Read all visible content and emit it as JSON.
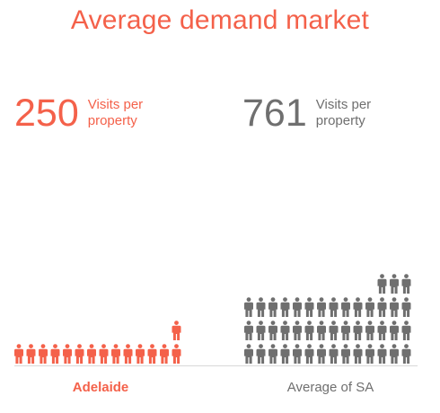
{
  "title": "Average demand market",
  "colors": {
    "accent": "#f4614a",
    "gray": "#6f6f6f",
    "divider": "#d8d8d8"
  },
  "chart_data": {
    "type": "bar",
    "encoding": "pictogram",
    "title": "Average demand market",
    "categories": [
      "Adelaide",
      "Average of SA"
    ],
    "values": [
      250,
      761
    ],
    "unit_label": "Visits per property",
    "icon": "person-icon",
    "series": [
      {
        "category": "Adelaide",
        "value": 250,
        "color": "#f4614a"
      },
      {
        "category": "Average of SA",
        "value": 761,
        "color": "#6f6f6f"
      }
    ]
  },
  "stats": [
    {
      "value": "250",
      "unit": "Visits per property"
    },
    {
      "value": "761",
      "unit": "Visits per property"
    }
  ]
}
